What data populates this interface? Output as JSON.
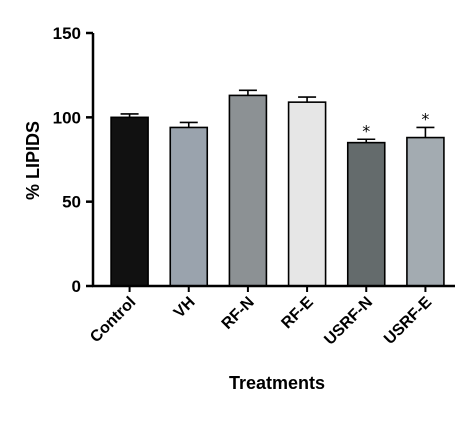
{
  "chart_data": {
    "type": "bar",
    "categories": [
      "Control",
      "VH",
      "RF-N",
      "RF-E",
      "USRF-N",
      "USRF-E"
    ],
    "values": [
      100,
      94,
      113,
      109,
      85,
      88
    ],
    "errors": [
      2,
      3,
      3,
      3,
      2,
      6
    ],
    "significance": [
      "",
      "",
      "",
      "",
      "*",
      "*"
    ],
    "bar_colors": [
      "#111111",
      "#9aa3ad",
      "#8c9194",
      "#e6e6e6",
      "#646b6c",
      "#a3abb1"
    ],
    "xlabel": "Treatments",
    "ylabel": "% LIPIDS",
    "ylim": [
      0,
      150
    ],
    "yticks": [
      0,
      50,
      100,
      150
    ],
    "grid": false,
    "legend": "none"
  }
}
